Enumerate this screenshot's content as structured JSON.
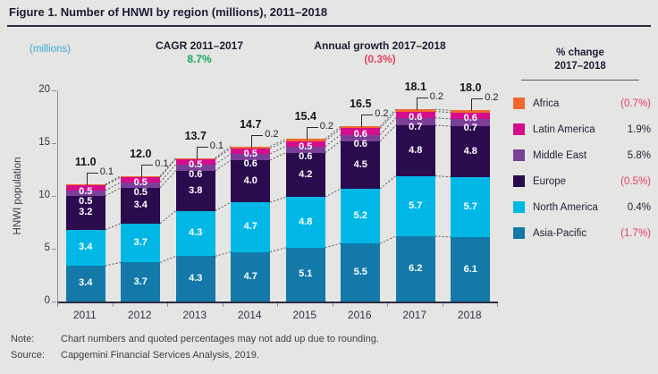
{
  "header": {
    "title": "Figure 1. Number of HNWI by region (millions), 2011–2018"
  },
  "annotations": {
    "units": "(millions)",
    "cagr_label": "CAGR 2011–2017",
    "cagr_value": "8.7%",
    "growth_label": "Annual growth 2017–2018",
    "growth_value": "(0.3%)"
  },
  "chart_data": {
    "type": "bar",
    "stacked": true,
    "title": "Number of HNWI by region (millions), 2011–2018",
    "xlabel": "",
    "ylabel": "HNWI population",
    "ylim": [
      0,
      20
    ],
    "yticks": [
      0,
      5,
      10,
      15,
      20
    ],
    "grid": false,
    "legend_position": "right",
    "categories": [
      "2011",
      "2012",
      "2013",
      "2014",
      "2015",
      "2016",
      "2017",
      "2018"
    ],
    "series": [
      {
        "name": "Asia-Pacific",
        "color": "#1379A8",
        "label_style": "center",
        "values": [
          3.4,
          3.7,
          4.3,
          4.7,
          5.1,
          5.5,
          6.2,
          6.1
        ]
      },
      {
        "name": "North America",
        "color": "#00B7E6",
        "label_style": "center",
        "values": [
          3.4,
          3.7,
          4.3,
          4.7,
          4.8,
          5.2,
          5.7,
          5.7
        ]
      },
      {
        "name": "Europe",
        "color": "#2A0B4D",
        "label_style": "center",
        "values": [
          3.2,
          3.4,
          3.8,
          4.0,
          4.2,
          4.5,
          4.8,
          4.8
        ]
      },
      {
        "name": "Middle East",
        "color": "#7B3F98",
        "label_style": "stack-lower",
        "values": [
          0.5,
          0.5,
          0.6,
          0.6,
          0.6,
          0.6,
          0.7,
          0.7
        ]
      },
      {
        "name": "Latin America",
        "color": "#D50C8C",
        "label_style": "stack-upper",
        "values": [
          0.5,
          0.5,
          0.5,
          0.5,
          0.5,
          0.6,
          0.6,
          0.6
        ]
      },
      {
        "name": "Africa",
        "color": "#F2692F",
        "label_style": "callout",
        "values": [
          0.1,
          0.1,
          0.1,
          0.2,
          0.2,
          0.2,
          0.2,
          0.2
        ]
      }
    ],
    "totals": [
      "11.0",
      "12.0",
      "13.7",
      "14.7",
      "15.4",
      "16.5",
      "18.1",
      "18.0"
    ],
    "callouts": [
      "0.1",
      "0.1",
      "0.1",
      "0.2",
      "0.2",
      "0.2",
      "0.2",
      "0.2"
    ]
  },
  "legend": {
    "header_line1": "% change",
    "header_line2": "2017–2018",
    "items": [
      {
        "name": "Africa",
        "color": "#F2692F",
        "change": "(0.7%)",
        "negative": true
      },
      {
        "name": "Latin America",
        "color": "#D50C8C",
        "change": "1.9%",
        "negative": false
      },
      {
        "name": "Middle East",
        "color": "#7B3F98",
        "change": "5.8%",
        "negative": false
      },
      {
        "name": "Europe",
        "color": "#2A0B4D",
        "change": "(0.5%)",
        "negative": true
      },
      {
        "name": "North America",
        "color": "#00B7E6",
        "change": "0.4%",
        "negative": false
      },
      {
        "name": "Asia-Pacific",
        "color": "#1379A8",
        "change": "(1.7%)",
        "negative": true
      }
    ]
  },
  "footer": {
    "note_label": "Note:",
    "note_text": "Chart numbers and quoted percentages may not add up due to rounding.",
    "source_label": "Source:",
    "source_text": "Capgemini Financial Services Analysis, 2019."
  },
  "colors": {
    "background": "#E5E5E3",
    "title_text": "#1C1C36",
    "axis_text": "#32324A",
    "positive_green": "#15A85A",
    "negative_red": "#E2415F",
    "units_blue": "#38A7DB",
    "connector_gray": "#5A5A66"
  }
}
